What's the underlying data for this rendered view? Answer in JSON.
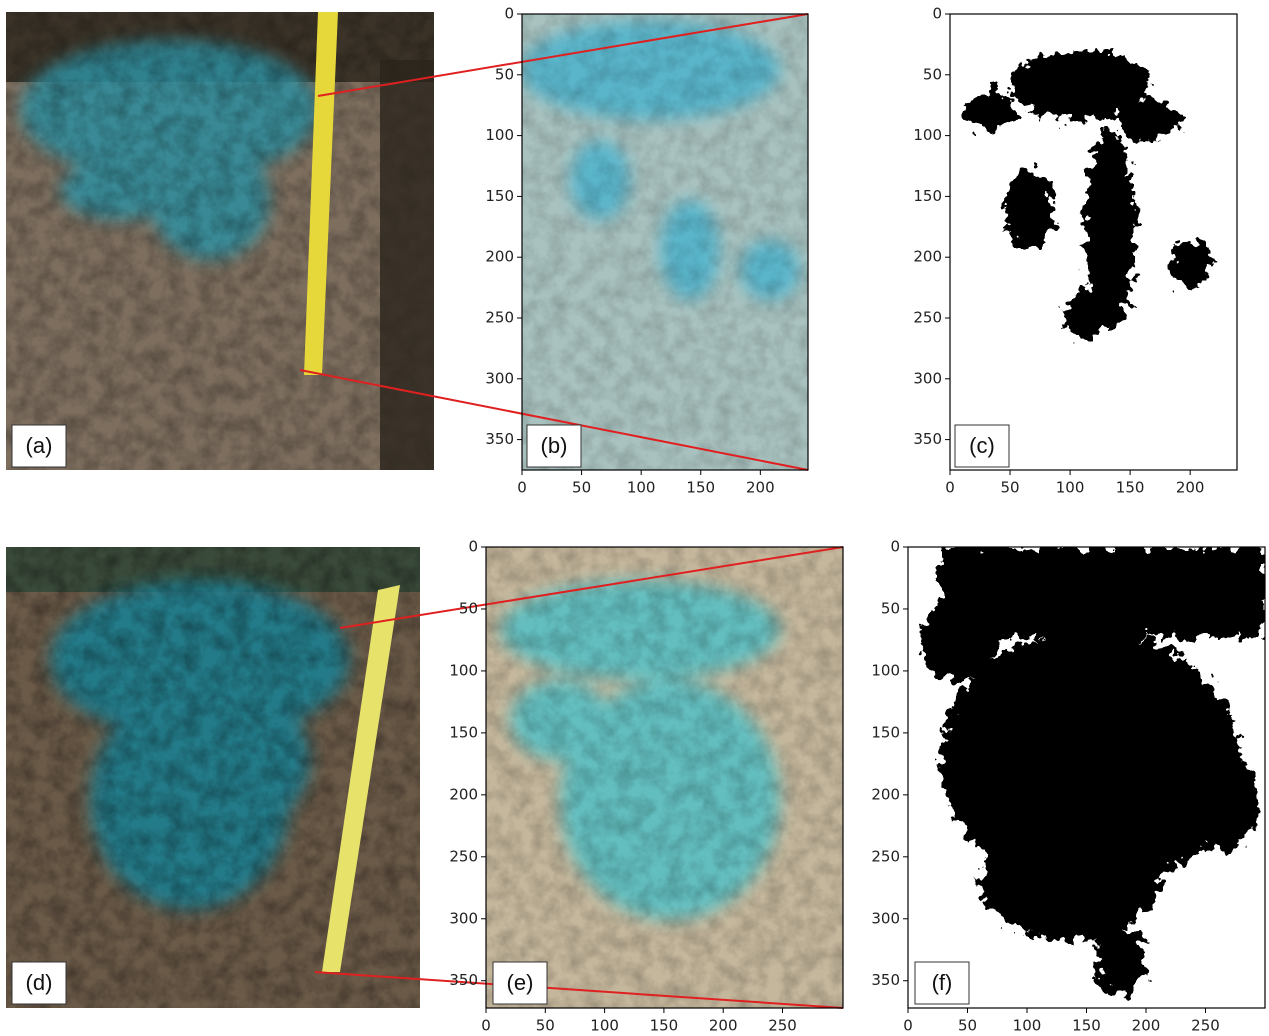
{
  "panels": [
    {
      "label": "(a)"
    },
    {
      "label": "(b)",
      "xlim": [
        0,
        240
      ],
      "ylim": [
        375,
        0
      ],
      "xticks": [
        0,
        50,
        100,
        150,
        200
      ],
      "yticks": [
        0,
        50,
        100,
        150,
        200,
        250,
        300,
        350
      ]
    },
    {
      "label": "(c)",
      "xlim": [
        0,
        239
      ],
      "ylim": [
        375,
        0
      ],
      "xticks": [
        0,
        50,
        100,
        150,
        200
      ],
      "yticks": [
        0,
        50,
        100,
        150,
        200,
        250,
        300,
        350
      ]
    },
    {
      "label": "(d)"
    },
    {
      "label": "(e)",
      "xlim": [
        0,
        301
      ],
      "ylim": [
        372,
        0
      ],
      "xticks": [
        0,
        50,
        100,
        150,
        200,
        250
      ],
      "yticks": [
        0,
        50,
        100,
        150,
        200,
        250,
        300,
        350
      ]
    },
    {
      "label": "(f)",
      "xlim": [
        0,
        300
      ],
      "ylim": [
        372,
        0
      ],
      "xticks": [
        0,
        50,
        100,
        150,
        200,
        250
      ],
      "yticks": [
        0,
        50,
        100,
        150,
        200,
        250,
        300,
        350
      ]
    }
  ]
}
